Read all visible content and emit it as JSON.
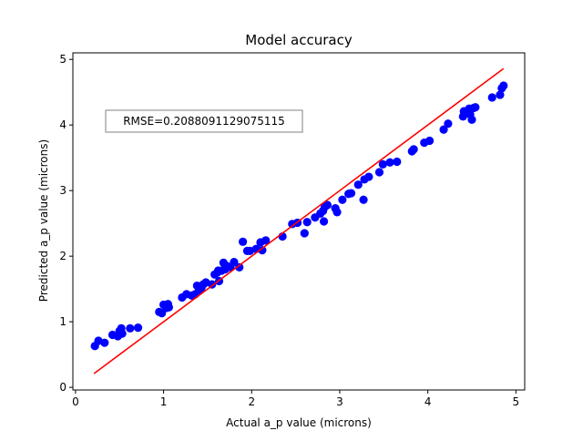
{
  "chart_data": {
    "type": "scatter",
    "title": "Model accuracy",
    "xlabel": "Actual a_p value (microns)",
    "ylabel": "Predicted a_p value (microns)",
    "xlim": [
      -0.03,
      5.1
    ],
    "ylim": [
      -0.04,
      5.1
    ],
    "xticks": [
      0,
      1,
      2,
      3,
      4,
      5
    ],
    "yticks": [
      0,
      1,
      2,
      3,
      4,
      5
    ],
    "grid": false,
    "annotation": "RMSE=0.2088091129075115",
    "colors": {
      "points": "#0000ff",
      "fit_line": "#ff0000"
    },
    "fit_line": {
      "x": [
        0.21,
        4.86
      ],
      "y": [
        0.21,
        4.86
      ]
    },
    "points": [
      [
        0.22,
        0.63
      ],
      [
        0.26,
        0.71
      ],
      [
        0.33,
        0.68
      ],
      [
        0.42,
        0.8
      ],
      [
        0.48,
        0.78
      ],
      [
        0.5,
        0.86
      ],
      [
        0.52,
        0.9
      ],
      [
        0.53,
        0.82
      ],
      [
        0.62,
        0.9
      ],
      [
        0.71,
        0.91
      ],
      [
        0.95,
        1.15
      ],
      [
        0.98,
        1.13
      ],
      [
        1.0,
        1.26
      ],
      [
        1.03,
        1.21
      ],
      [
        1.05,
        1.27
      ],
      [
        1.06,
        1.22
      ],
      [
        1.21,
        1.37
      ],
      [
        1.26,
        1.42
      ],
      [
        1.32,
        1.4
      ],
      [
        1.36,
        1.42
      ],
      [
        1.38,
        1.55
      ],
      [
        1.4,
        1.47
      ],
      [
        1.43,
        1.52
      ],
      [
        1.45,
        1.57
      ],
      [
        1.48,
        1.6
      ],
      [
        1.55,
        1.57
      ],
      [
        1.58,
        1.72
      ],
      [
        1.61,
        1.75
      ],
      [
        1.62,
        1.78
      ],
      [
        1.63,
        1.62
      ],
      [
        1.66,
        1.78
      ],
      [
        1.68,
        1.9
      ],
      [
        1.7,
        1.8
      ],
      [
        1.72,
        1.85
      ],
      [
        1.76,
        1.83
      ],
      [
        1.8,
        1.91
      ],
      [
        1.86,
        1.83
      ],
      [
        1.9,
        2.22
      ],
      [
        1.95,
        2.08
      ],
      [
        1.98,
        2.08
      ],
      [
        2.05,
        2.11
      ],
      [
        2.1,
        2.21
      ],
      [
        2.12,
        2.09
      ],
      [
        2.16,
        2.24
      ],
      [
        2.35,
        2.3
      ],
      [
        2.46,
        2.49
      ],
      [
        2.52,
        2.51
      ],
      [
        2.6,
        2.35
      ],
      [
        2.63,
        2.52
      ],
      [
        2.72,
        2.59
      ],
      [
        2.78,
        2.65
      ],
      [
        2.81,
        2.69
      ],
      [
        2.82,
        2.53
      ],
      [
        2.83,
        2.75
      ],
      [
        2.86,
        2.78
      ],
      [
        2.95,
        2.73
      ],
      [
        2.97,
        2.67
      ],
      [
        3.03,
        2.86
      ],
      [
        3.1,
        2.95
      ],
      [
        3.13,
        2.96
      ],
      [
        3.21,
        3.09
      ],
      [
        3.27,
        2.86
      ],
      [
        3.28,
        3.17
      ],
      [
        3.33,
        3.21
      ],
      [
        3.45,
        3.28
      ],
      [
        3.49,
        3.4
      ],
      [
        3.57,
        3.43
      ],
      [
        3.65,
        3.44
      ],
      [
        3.82,
        3.6
      ],
      [
        3.84,
        3.63
      ],
      [
        3.96,
        3.73
      ],
      [
        4.02,
        3.76
      ],
      [
        4.18,
        3.93
      ],
      [
        4.23,
        4.02
      ],
      [
        4.4,
        4.13
      ],
      [
        4.41,
        4.21
      ],
      [
        4.45,
        4.19
      ],
      [
        4.47,
        4.25
      ],
      [
        4.48,
        4.16
      ],
      [
        4.5,
        4.08
      ],
      [
        4.52,
        4.26
      ],
      [
        4.54,
        4.27
      ],
      [
        4.73,
        4.42
      ],
      [
        4.82,
        4.46
      ],
      [
        4.84,
        4.56
      ],
      [
        4.86,
        4.6
      ]
    ]
  }
}
